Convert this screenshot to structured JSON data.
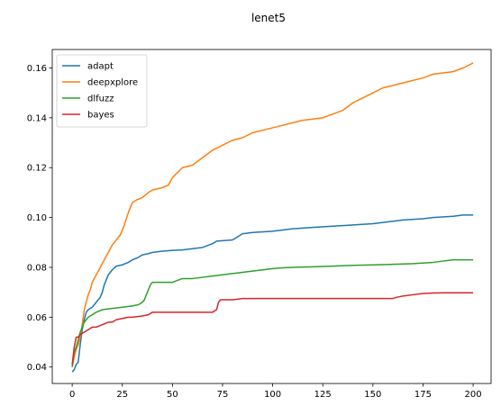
{
  "chart_data": {
    "type": "line",
    "title": "lenet5",
    "xlabel": "",
    "ylabel": "",
    "xlim": [
      -9.95,
      208.95
    ],
    "ylim": [
      0.0334,
      0.1674
    ],
    "xticks": [
      0,
      25,
      50,
      75,
      100,
      125,
      150,
      175,
      200
    ],
    "yticks": [
      0.04,
      0.06,
      0.08,
      0.1,
      0.12,
      0.14,
      0.16
    ],
    "ytick_labels": [
      "0.04",
      "0.06",
      "0.08",
      "0.10",
      "0.12",
      "0.14",
      "0.16"
    ],
    "grid": false,
    "legend_position": "top-left",
    "series": [
      {
        "name": "adapt",
        "color": "#1f77b4",
        "points": [
          [
            0,
            0.038
          ],
          [
            1,
            0.039
          ],
          [
            2,
            0.041
          ],
          [
            3,
            0.042
          ],
          [
            4,
            0.049
          ],
          [
            5,
            0.055
          ],
          [
            6,
            0.059
          ],
          [
            7,
            0.062
          ],
          [
            8,
            0.063
          ],
          [
            10,
            0.064
          ],
          [
            12,
            0.066
          ],
          [
            14,
            0.068
          ],
          [
            15,
            0.07
          ],
          [
            16,
            0.073
          ],
          [
            17,
            0.075
          ],
          [
            18,
            0.077
          ],
          [
            20,
            0.079
          ],
          [
            22,
            0.0805
          ],
          [
            25,
            0.081
          ],
          [
            28,
            0.082
          ],
          [
            30,
            0.083
          ],
          [
            33,
            0.084
          ],
          [
            35,
            0.085
          ],
          [
            38,
            0.0855
          ],
          [
            40,
            0.086
          ],
          [
            45,
            0.0865
          ],
          [
            50,
            0.0868
          ],
          [
            55,
            0.087
          ],
          [
            60,
            0.0875
          ],
          [
            65,
            0.088
          ],
          [
            70,
            0.0895
          ],
          [
            72,
            0.0905
          ],
          [
            80,
            0.091
          ],
          [
            85,
            0.0935
          ],
          [
            90,
            0.094
          ],
          [
            100,
            0.0945
          ],
          [
            105,
            0.095
          ],
          [
            110,
            0.0955
          ],
          [
            120,
            0.096
          ],
          [
            130,
            0.0965
          ],
          [
            140,
            0.097
          ],
          [
            150,
            0.0975
          ],
          [
            155,
            0.098
          ],
          [
            160,
            0.0985
          ],
          [
            165,
            0.099
          ],
          [
            175,
            0.0995
          ],
          [
            180,
            0.1
          ],
          [
            190,
            0.1005
          ],
          [
            195,
            0.101
          ],
          [
            200,
            0.101
          ]
        ]
      },
      {
        "name": "deepxplore",
        "color": "#ff7f0e",
        "points": [
          [
            0,
            0.04
          ],
          [
            1,
            0.044
          ],
          [
            2,
            0.047
          ],
          [
            3,
            0.049
          ],
          [
            4,
            0.052
          ],
          [
            5,
            0.057
          ],
          [
            6,
            0.063
          ],
          [
            7,
            0.066
          ],
          [
            8,
            0.069
          ],
          [
            9,
            0.071
          ],
          [
            10,
            0.074
          ],
          [
            12,
            0.077
          ],
          [
            14,
            0.08
          ],
          [
            16,
            0.083
          ],
          [
            18,
            0.086
          ],
          [
            20,
            0.089
          ],
          [
            22,
            0.091
          ],
          [
            24,
            0.093
          ],
          [
            26,
            0.097
          ],
          [
            28,
            0.102
          ],
          [
            30,
            0.106
          ],
          [
            32,
            0.107
          ],
          [
            35,
            0.108
          ],
          [
            38,
            0.11
          ],
          [
            40,
            0.111
          ],
          [
            45,
            0.112
          ],
          [
            48,
            0.113
          ],
          [
            50,
            0.116
          ],
          [
            55,
            0.12
          ],
          [
            60,
            0.121
          ],
          [
            65,
            0.124
          ],
          [
            70,
            0.127
          ],
          [
            75,
            0.129
          ],
          [
            80,
            0.131
          ],
          [
            85,
            0.132
          ],
          [
            90,
            0.134
          ],
          [
            95,
            0.135
          ],
          [
            100,
            0.136
          ],
          [
            105,
            0.137
          ],
          [
            110,
            0.138
          ],
          [
            115,
            0.139
          ],
          [
            120,
            0.1395
          ],
          [
            125,
            0.14
          ],
          [
            130,
            0.1415
          ],
          [
            135,
            0.143
          ],
          [
            140,
            0.146
          ],
          [
            145,
            0.148
          ],
          [
            150,
            0.15
          ],
          [
            155,
            0.152
          ],
          [
            160,
            0.153
          ],
          [
            165,
            0.154
          ],
          [
            170,
            0.155
          ],
          [
            175,
            0.156
          ],
          [
            180,
            0.1575
          ],
          [
            185,
            0.158
          ],
          [
            190,
            0.1585
          ],
          [
            195,
            0.16
          ],
          [
            200,
            0.162
          ]
        ]
      },
      {
        "name": "dlfuzz",
        "color": "#2ca02c",
        "points": [
          [
            0,
            0.04
          ],
          [
            1,
            0.046
          ],
          [
            2,
            0.048
          ],
          [
            3,
            0.051
          ],
          [
            4,
            0.054
          ],
          [
            5,
            0.056
          ],
          [
            6,
            0.058
          ],
          [
            8,
            0.06
          ],
          [
            10,
            0.061
          ],
          [
            12,
            0.062
          ],
          [
            15,
            0.063
          ],
          [
            20,
            0.0635
          ],
          [
            25,
            0.064
          ],
          [
            30,
            0.0645
          ],
          [
            33,
            0.065
          ],
          [
            35,
            0.066
          ],
          [
            36,
            0.067
          ],
          [
            37,
            0.069
          ],
          [
            38,
            0.071
          ],
          [
            39,
            0.073
          ],
          [
            40,
            0.074
          ],
          [
            50,
            0.074
          ],
          [
            55,
            0.0755
          ],
          [
            60,
            0.0755
          ],
          [
            65,
            0.076
          ],
          [
            70,
            0.0765
          ],
          [
            75,
            0.077
          ],
          [
            80,
            0.0775
          ],
          [
            85,
            0.078
          ],
          [
            90,
            0.0785
          ],
          [
            95,
            0.079
          ],
          [
            100,
            0.0795
          ],
          [
            105,
            0.0798
          ],
          [
            110,
            0.08
          ],
          [
            120,
            0.0802
          ],
          [
            130,
            0.0805
          ],
          [
            140,
            0.0808
          ],
          [
            150,
            0.081
          ],
          [
            160,
            0.0812
          ],
          [
            170,
            0.0815
          ],
          [
            180,
            0.082
          ],
          [
            185,
            0.0825
          ],
          [
            190,
            0.083
          ],
          [
            200,
            0.083
          ]
        ]
      },
      {
        "name": "bayes",
        "color": "#d62728",
        "points": [
          [
            0,
            0.041
          ],
          [
            1,
            0.048
          ],
          [
            2,
            0.052
          ],
          [
            3,
            0.052
          ],
          [
            4,
            0.053
          ],
          [
            6,
            0.054
          ],
          [
            8,
            0.055
          ],
          [
            10,
            0.056
          ],
          [
            12,
            0.056
          ],
          [
            15,
            0.057
          ],
          [
            18,
            0.058
          ],
          [
            20,
            0.058
          ],
          [
            22,
            0.059
          ],
          [
            25,
            0.0595
          ],
          [
            28,
            0.06
          ],
          [
            30,
            0.06
          ],
          [
            35,
            0.0605
          ],
          [
            38,
            0.061
          ],
          [
            40,
            0.062
          ],
          [
            50,
            0.062
          ],
          [
            60,
            0.062
          ],
          [
            70,
            0.062
          ],
          [
            72,
            0.063
          ],
          [
            73,
            0.066
          ],
          [
            74,
            0.067
          ],
          [
            80,
            0.067
          ],
          [
            85,
            0.0675
          ],
          [
            100,
            0.0675
          ],
          [
            120,
            0.0675
          ],
          [
            140,
            0.0675
          ],
          [
            160,
            0.0675
          ],
          [
            162,
            0.068
          ],
          [
            165,
            0.0685
          ],
          [
            170,
            0.069
          ],
          [
            175,
            0.0695
          ],
          [
            180,
            0.0697
          ],
          [
            185,
            0.0698
          ],
          [
            190,
            0.0698
          ],
          [
            200,
            0.0698
          ]
        ]
      }
    ]
  }
}
